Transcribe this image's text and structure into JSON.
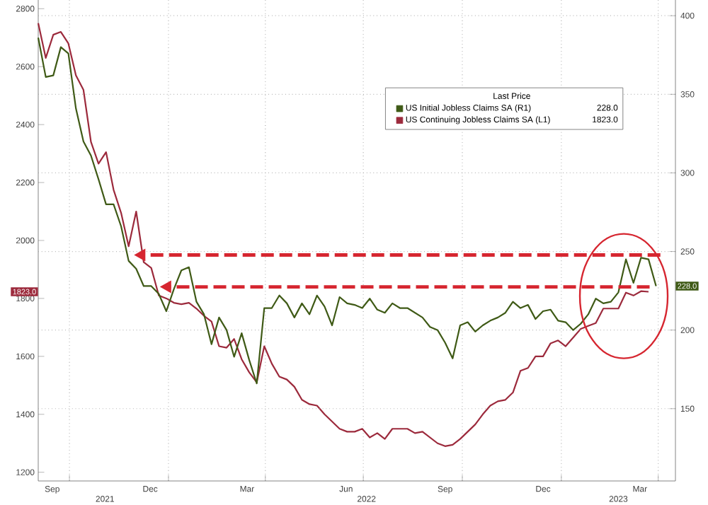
{
  "chart_data": {
    "type": "line",
    "legend_title": "Last Price",
    "legend": "top right",
    "grid": true,
    "xlim": [
      "2021-09-02",
      "2023-04-17"
    ],
    "xticks": [
      {
        "value": "2021-09-15",
        "label": "Sep"
      },
      {
        "value": "2021-10-01",
        "label": null
      },
      {
        "value": "2021-12-15",
        "label": "Dec"
      },
      {
        "value": "2022-01-01",
        "label": null
      },
      {
        "value": "2022-03-15",
        "label": "Mar"
      },
      {
        "value": "2022-04-01",
        "label": null
      },
      {
        "value": "2022-06-15",
        "label": "Jun"
      },
      {
        "value": "2022-07-01",
        "label": null
      },
      {
        "value": "2022-09-15",
        "label": "Sep"
      },
      {
        "value": "2022-10-01",
        "label": null
      },
      {
        "value": "2022-12-15",
        "label": "Dec"
      },
      {
        "value": "2023-01-01",
        "label": null
      },
      {
        "value": "2023-03-15",
        "label": "Mar"
      },
      {
        "value": "2023-04-01",
        "label": null
      }
    ],
    "x2lim": [
      "2021-09-02",
      "2023-04-17"
    ],
    "x2ticks": [
      {
        "value": "2021-11-03",
        "label": "2021"
      },
      {
        "value": "2022-07-04",
        "label": "2022"
      },
      {
        "value": "2023-02-23",
        "label": "2023"
      }
    ],
    "ylim": [
      1170,
      2830
    ],
    "yticks": [
      1200,
      1400,
      1600,
      1800,
      2000,
      2200,
      2400,
      2600,
      2800
    ],
    "annotations": [
      "228.0",
      "1823.0",
      "228.0",
      "1823.0"
    ],
    "ref_lines": [
      {
        "axis": "y",
        "value": 1950,
        "color": "#d62630",
        "line_style": "dashed"
      },
      {
        "axis": "y",
        "value": 1840,
        "color": "#d62630",
        "line_style": "dashed"
      }
    ],
    "y2lim": [
      104,
      410
    ],
    "y2ticks": [
      150,
      200,
      250,
      300,
      350,
      400
    ],
    "series": [
      {
        "name": "US Initial Jobless Claims SA (R1)",
        "color": "#3f5a16",
        "axis": "y2",
        "x": [
          "2021-09-02",
          "2021-09-09",
          "2021-09-16",
          "2021-09-23",
          "2021-09-30",
          "2021-10-07",
          "2021-10-14",
          "2021-10-21",
          "2021-10-28",
          "2021-11-04",
          "2021-11-11",
          "2021-11-18",
          "2021-11-25",
          "2021-12-02",
          "2021-12-09",
          "2021-12-16",
          "2021-12-23",
          "2021-12-30",
          "2022-01-06",
          "2022-01-13",
          "2022-01-20",
          "2022-01-27",
          "2022-02-03",
          "2022-02-10",
          "2022-02-17",
          "2022-02-24",
          "2022-03-03",
          "2022-03-10",
          "2022-03-17",
          "2022-03-24",
          "2022-03-31",
          "2022-04-07",
          "2022-04-14",
          "2022-04-21",
          "2022-04-28",
          "2022-05-05",
          "2022-05-12",
          "2022-05-19",
          "2022-05-26",
          "2022-06-02",
          "2022-06-09",
          "2022-06-16",
          "2022-06-23",
          "2022-06-30",
          "2022-07-07",
          "2022-07-14",
          "2022-07-21",
          "2022-07-28",
          "2022-08-04",
          "2022-08-11",
          "2022-08-18",
          "2022-08-25",
          "2022-09-01",
          "2022-09-08",
          "2022-09-15",
          "2022-09-22",
          "2022-09-29",
          "2022-10-06",
          "2022-10-13",
          "2022-10-20",
          "2022-10-27",
          "2022-11-03",
          "2022-11-10",
          "2022-11-17",
          "2022-11-24",
          "2022-12-01",
          "2022-12-08",
          "2022-12-15",
          "2022-12-22",
          "2022-12-29",
          "2023-01-05",
          "2023-01-12",
          "2023-01-19",
          "2023-01-26",
          "2023-02-02",
          "2023-02-09",
          "2023-02-16",
          "2023-02-23",
          "2023-03-02",
          "2023-03-09",
          "2023-03-16",
          "2023-03-23",
          "2023-03-30"
        ],
        "values": [
          386,
          361,
          362,
          380,
          376,
          341,
          320,
          311,
          296,
          280,
          280,
          266,
          244,
          239,
          228,
          228,
          223,
          212,
          226,
          238,
          240,
          218,
          210,
          191,
          208,
          200,
          183,
          198,
          181,
          166,
          214,
          214,
          222,
          217,
          208,
          217,
          210,
          222,
          215,
          203,
          221,
          217,
          216,
          214,
          220,
          213,
          211,
          217,
          214,
          214,
          211,
          208,
          202,
          200,
          192,
          182,
          203,
          205,
          199,
          203,
          206,
          208,
          211,
          218,
          214,
          216,
          207,
          212,
          213,
          206,
          205,
          200,
          204,
          210,
          220,
          217,
          218,
          224,
          245,
          230,
          246,
          245,
          228
        ]
      },
      {
        "name": "US Continuing Jobless Claims SA (L1)",
        "color": "#9c2a3c",
        "axis": "y",
        "x": [
          "2021-09-02",
          "2021-09-09",
          "2021-09-16",
          "2021-09-23",
          "2021-09-30",
          "2021-10-07",
          "2021-10-14",
          "2021-10-21",
          "2021-10-28",
          "2021-11-04",
          "2021-11-11",
          "2021-11-18",
          "2021-11-25",
          "2021-12-02",
          "2021-12-09",
          "2021-12-16",
          "2021-12-23",
          "2021-12-30",
          "2022-01-06",
          "2022-01-13",
          "2022-01-20",
          "2022-01-27",
          "2022-02-03",
          "2022-02-10",
          "2022-02-17",
          "2022-02-24",
          "2022-03-03",
          "2022-03-10",
          "2022-03-17",
          "2022-03-24",
          "2022-03-31",
          "2022-04-07",
          "2022-04-14",
          "2022-04-21",
          "2022-04-28",
          "2022-05-05",
          "2022-05-12",
          "2022-05-19",
          "2022-05-26",
          "2022-06-02",
          "2022-06-09",
          "2022-06-16",
          "2022-06-23",
          "2022-06-30",
          "2022-07-07",
          "2022-07-14",
          "2022-07-21",
          "2022-07-28",
          "2022-08-04",
          "2022-08-11",
          "2022-08-18",
          "2022-08-25",
          "2022-09-01",
          "2022-09-08",
          "2022-09-15",
          "2022-09-22",
          "2022-09-29",
          "2022-10-06",
          "2022-10-13",
          "2022-10-20",
          "2022-10-27",
          "2022-11-03",
          "2022-11-10",
          "2022-11-17",
          "2022-11-24",
          "2022-12-01",
          "2022-12-08",
          "2022-12-15",
          "2022-12-22",
          "2022-12-29",
          "2023-01-05",
          "2023-01-12",
          "2023-01-19",
          "2023-01-26",
          "2023-02-02",
          "2023-02-09",
          "2023-02-16",
          "2023-02-23",
          "2023-03-02",
          "2023-03-09",
          "2023-03-16",
          "2023-03-23"
        ],
        "values": [
          2750,
          2630,
          2710,
          2720,
          2680,
          2570,
          2520,
          2340,
          2265,
          2305,
          2175,
          2095,
          1980,
          2100,
          1925,
          1905,
          1810,
          1800,
          1785,
          1780,
          1785,
          1765,
          1740,
          1720,
          1635,
          1630,
          1660,
          1590,
          1545,
          1510,
          1635,
          1575,
          1530,
          1520,
          1495,
          1450,
          1435,
          1430,
          1400,
          1375,
          1350,
          1340,
          1340,
          1350,
          1320,
          1335,
          1315,
          1350,
          1350,
          1350,
          1335,
          1340,
          1320,
          1300,
          1290,
          1295,
          1315,
          1340,
          1365,
          1400,
          1430,
          1445,
          1450,
          1475,
          1550,
          1560,
          1600,
          1600,
          1645,
          1655,
          1635,
          1665,
          1695,
          1705,
          1715,
          1765,
          1765,
          1765,
          1820,
          1810,
          1825,
          1823
        ]
      }
    ]
  }
}
